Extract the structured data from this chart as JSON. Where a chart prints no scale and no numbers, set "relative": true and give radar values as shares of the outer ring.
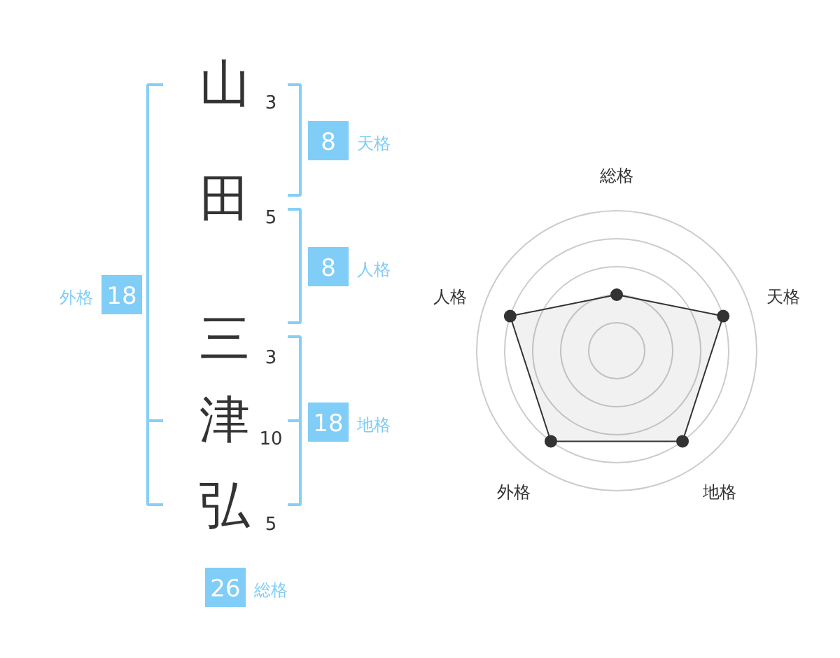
{
  "chart_data": [
    {
      "type": "other",
      "categories": [
        "山",
        "田",
        "三",
        "津",
        "弘"
      ],
      "values": [
        3,
        5,
        3,
        10,
        5
      ],
      "data_labels": true,
      "annotations": [
        "8",
        "天格",
        "8",
        "人格",
        "18",
        "地格",
        "18",
        "外格",
        "26",
        "総格"
      ]
    },
    {
      "type": "radar",
      "categories": [
        "総格",
        "天格",
        "地格",
        "外格",
        "人格"
      ],
      "relative": true,
      "grid": true,
      "marker": "circle",
      "series": [
        {
          "color": "#333333",
          "values": [
            0.4,
            0.8,
            0.8,
            0.8,
            0.8
          ]
        }
      ]
    }
  ]
}
